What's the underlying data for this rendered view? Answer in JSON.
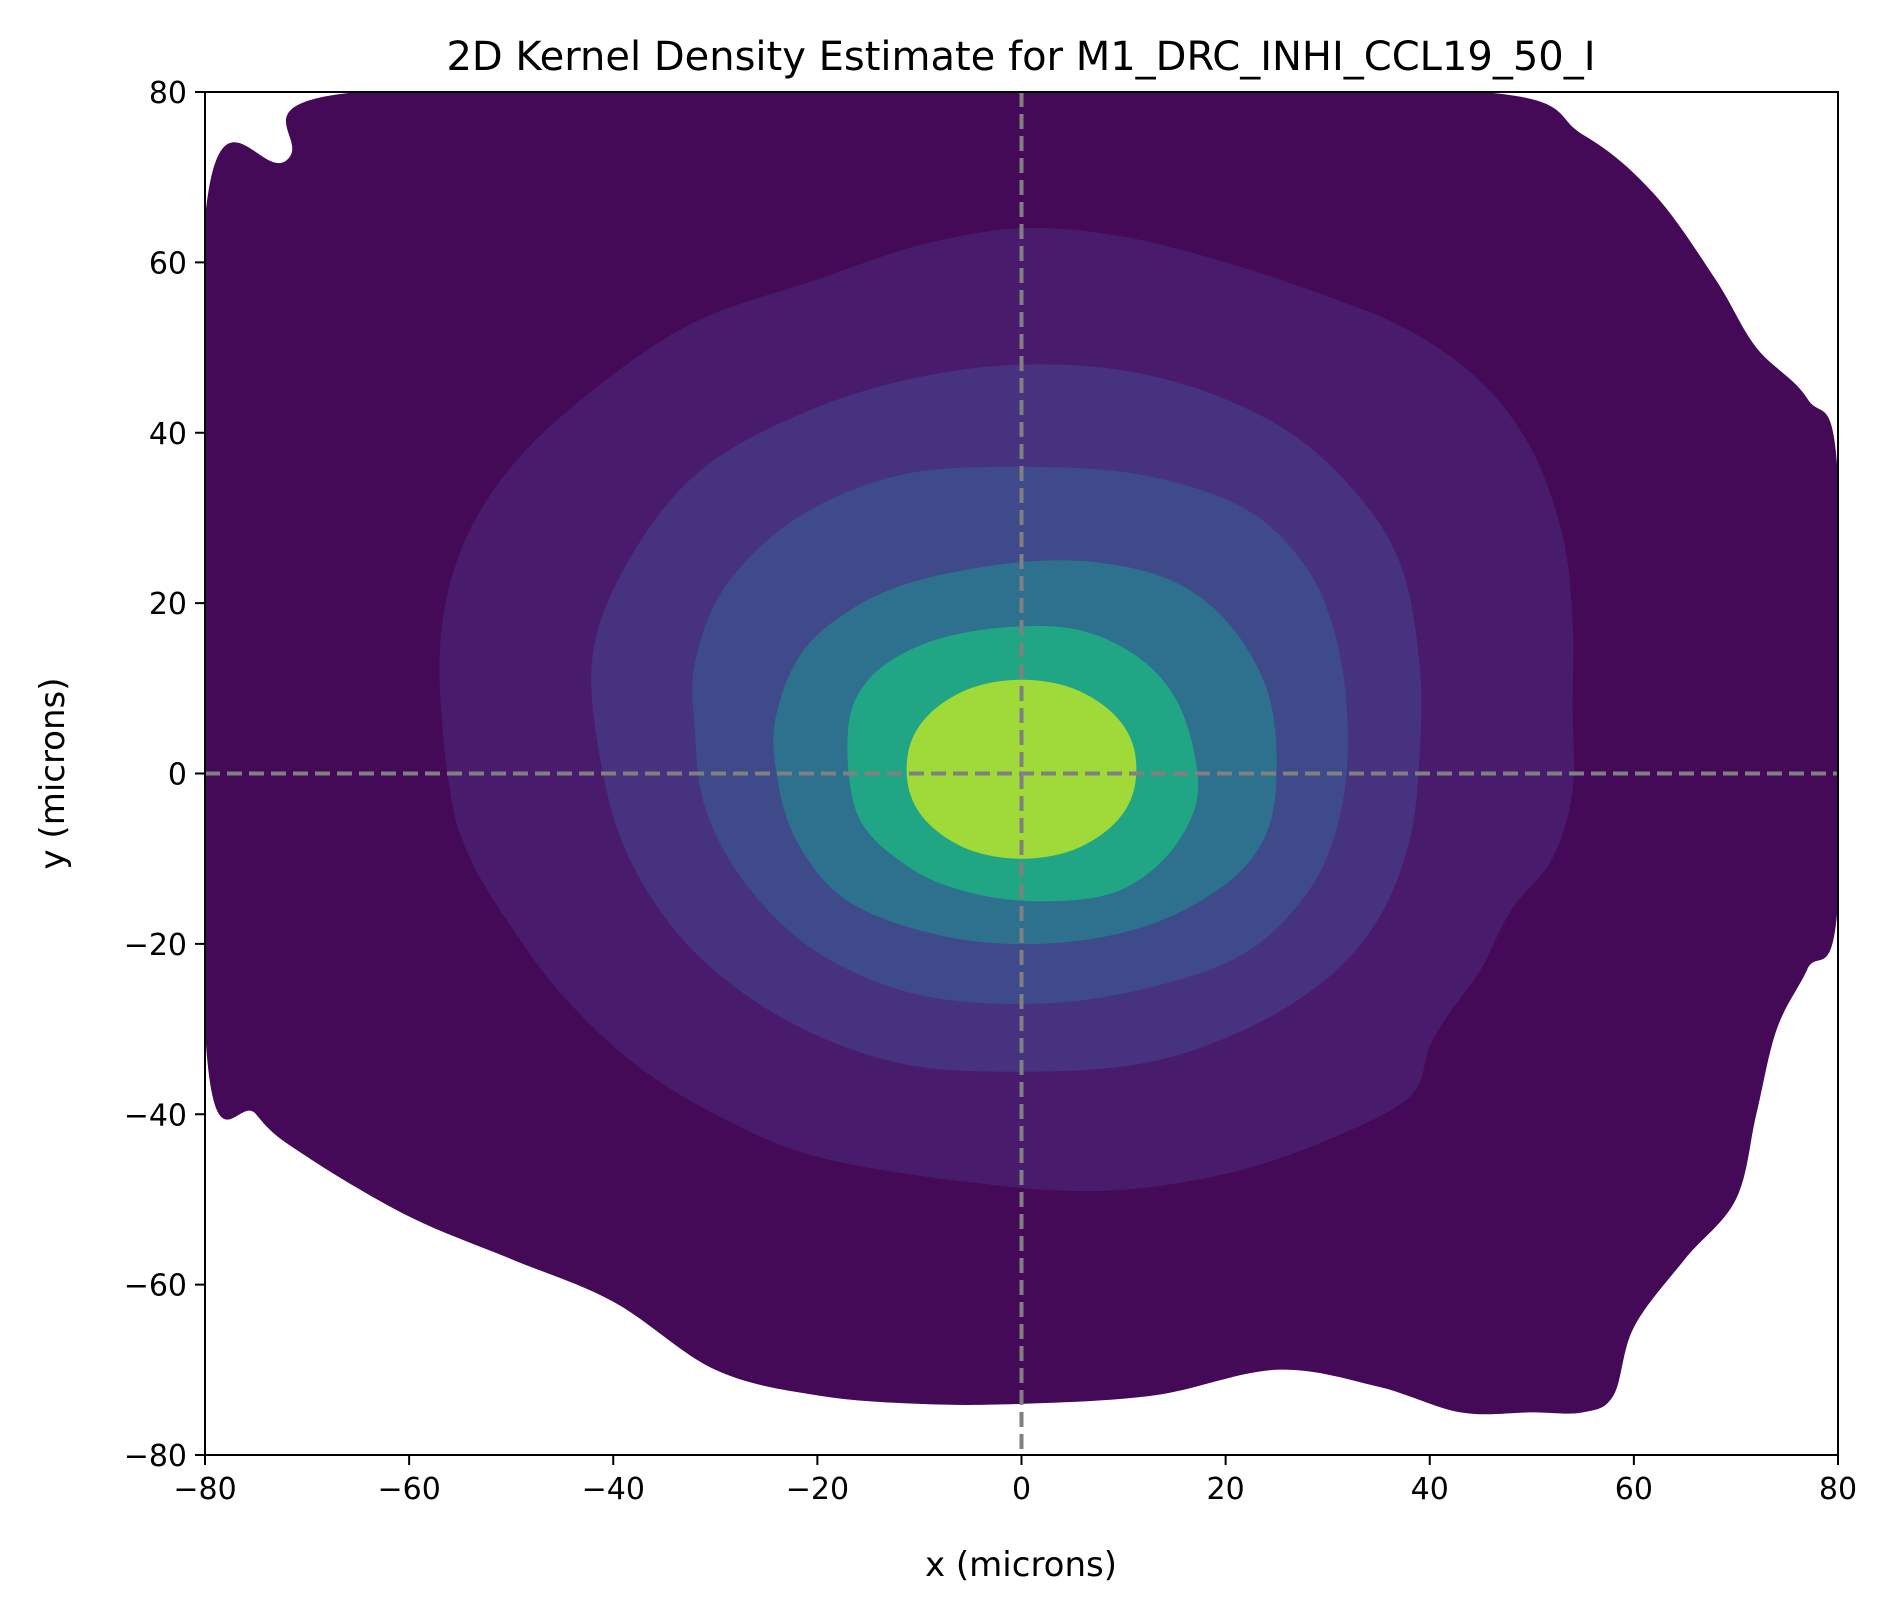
{
  "chart_data": {
    "type": "kde_contour",
    "title": "2D Kernel Density Estimate for M1_DRC_INHI_CCL19_50_I",
    "xlabel": "x (microns)",
    "ylabel": "y (microns)",
    "xlim": [
      -80,
      80
    ],
    "ylim": [
      -80,
      80
    ],
    "xticks": [
      -80,
      -60,
      -40,
      -20,
      0,
      20,
      40,
      60,
      80
    ],
    "yticks": [
      -80,
      -60,
      -40,
      -20,
      0,
      20,
      40,
      60,
      80
    ],
    "xtick_labels": [
      "−80",
      "−60",
      "−40",
      "−20",
      "0",
      "20",
      "40",
      "60",
      "80"
    ],
    "ytick_labels": [
      "−80",
      "−60",
      "−40",
      "−20",
      "0",
      "20",
      "40",
      "60",
      "80"
    ],
    "colormap": "viridis",
    "reference_lines": {
      "x": 0,
      "y": 0,
      "style": "dashed",
      "color": "#808080"
    },
    "grid": false,
    "levels": [
      {
        "level": 1,
        "color": "#440a57",
        "outline": [
          [
            -80,
            65
          ],
          [
            -72,
            72
          ],
          [
            -65,
            80
          ],
          [
            0,
            80
          ],
          [
            45,
            80
          ],
          [
            55,
            75
          ],
          [
            62,
            68
          ],
          [
            68,
            58
          ],
          [
            72,
            50
          ],
          [
            77,
            44
          ],
          [
            80,
            35
          ],
          [
            80,
            -15
          ],
          [
            77,
            -23
          ],
          [
            74,
            -30
          ],
          [
            72,
            -40
          ],
          [
            70,
            -50
          ],
          [
            65,
            -57
          ],
          [
            60,
            -65
          ],
          [
            58,
            -73
          ],
          [
            55,
            -75
          ],
          [
            50,
            -75
          ],
          [
            43,
            -75
          ],
          [
            35,
            -72
          ],
          [
            25,
            -70
          ],
          [
            13,
            -73
          ],
          [
            0,
            -74
          ],
          [
            -10,
            -74
          ],
          [
            -20,
            -73
          ],
          [
            -30,
            -70
          ],
          [
            -40,
            -62
          ],
          [
            -50,
            -57
          ],
          [
            -60,
            -52
          ],
          [
            -70,
            -45
          ],
          [
            -75,
            -40
          ],
          [
            -80,
            -30
          ]
        ]
      },
      {
        "level": 2,
        "color": "#481b6d",
        "outline": [
          [
            -57,
            14
          ],
          [
            -55,
            26
          ],
          [
            -50,
            36
          ],
          [
            -42,
            45
          ],
          [
            -32,
            53
          ],
          [
            -20,
            58
          ],
          [
            -10,
            62
          ],
          [
            0,
            64
          ],
          [
            10,
            63
          ],
          [
            20,
            60
          ],
          [
            30,
            56
          ],
          [
            38,
            52
          ],
          [
            45,
            46
          ],
          [
            50,
            38
          ],
          [
            53,
            28
          ],
          [
            54,
            18
          ],
          [
            54,
            8
          ],
          [
            54,
            -2
          ],
          [
            52,
            -10
          ],
          [
            48,
            -16
          ],
          [
            45,
            -23
          ],
          [
            42,
            -28
          ],
          [
            40,
            -32
          ],
          [
            38,
            -38
          ],
          [
            30,
            -43
          ],
          [
            20,
            -47
          ],
          [
            8,
            -49
          ],
          [
            -5,
            -48
          ],
          [
            -20,
            -45
          ],
          [
            -30,
            -40
          ],
          [
            -38,
            -34
          ],
          [
            -45,
            -26
          ],
          [
            -50,
            -18
          ],
          [
            -54,
            -10
          ],
          [
            -56,
            -2
          ]
        ]
      },
      {
        "level": 3,
        "color": "#46327e",
        "outline": [
          [
            -42,
            14
          ],
          [
            -38,
            26
          ],
          [
            -31,
            36
          ],
          [
            -20,
            43
          ],
          [
            -8,
            47
          ],
          [
            4,
            48
          ],
          [
            15,
            46
          ],
          [
            25,
            41
          ],
          [
            32,
            34
          ],
          [
            37,
            25
          ],
          [
            39,
            13
          ],
          [
            39,
            2
          ],
          [
            38,
            -8
          ],
          [
            35,
            -17
          ],
          [
            30,
            -24
          ],
          [
            22,
            -30
          ],
          [
            12,
            -34
          ],
          [
            0,
            -35
          ],
          [
            -12,
            -34
          ],
          [
            -23,
            -29
          ],
          [
            -32,
            -21
          ],
          [
            -38,
            -11
          ],
          [
            -41,
            0
          ]
        ]
      },
      {
        "level": 4,
        "color": "#3e4a89",
        "outline": [
          [
            -32,
            13
          ],
          [
            -29,
            22
          ],
          [
            -22,
            30
          ],
          [
            -12,
            35
          ],
          [
            0,
            36
          ],
          [
            12,
            35
          ],
          [
            22,
            31
          ],
          [
            28,
            24
          ],
          [
            31,
            15
          ],
          [
            32,
            4
          ],
          [
            31,
            -6
          ],
          [
            28,
            -14
          ],
          [
            22,
            -21
          ],
          [
            13,
            -25
          ],
          [
            2,
            -27
          ],
          [
            -10,
            -26
          ],
          [
            -20,
            -21
          ],
          [
            -27,
            -13
          ],
          [
            -31,
            -4
          ],
          [
            -32,
            5
          ]
        ]
      },
      {
        "level": 5,
        "color": "#2d718e",
        "outline": [
          [
            -24,
            7
          ],
          [
            -21,
            15
          ],
          [
            -14,
            21
          ],
          [
            -5,
            24
          ],
          [
            5,
            25
          ],
          [
            14,
            23
          ],
          [
            20,
            18
          ],
          [
            24,
            10
          ],
          [
            25,
            1
          ],
          [
            24,
            -7
          ],
          [
            20,
            -13
          ],
          [
            12,
            -18
          ],
          [
            2,
            -20
          ],
          [
            -8,
            -19
          ],
          [
            -17,
            -15
          ],
          [
            -22,
            -8
          ],
          [
            -24,
            0
          ]
        ]
      },
      {
        "level": 6,
        "color": "#21a685",
        "outline": [
          [
            -17,
            5
          ],
          [
            -15,
            11
          ],
          [
            -10,
            15
          ],
          [
            -3,
            17
          ],
          [
            5,
            17
          ],
          [
            11,
            14
          ],
          [
            15,
            9
          ],
          [
            17,
            2
          ],
          [
            17,
            -4
          ],
          [
            14,
            -10
          ],
          [
            9,
            -14
          ],
          [
            2,
            -15
          ],
          [
            -5,
            -14
          ],
          [
            -11,
            -11
          ],
          [
            -16,
            -5
          ]
        ]
      },
      {
        "level": 7,
        "color": "#a0da39",
        "outline": [
          [
            -11,
            3
          ],
          [
            -9,
            7
          ],
          [
            -5,
            10
          ],
          [
            0,
            11
          ],
          [
            5,
            10
          ],
          [
            9,
            7
          ],
          [
            11,
            3
          ],
          [
            11,
            -2
          ],
          [
            9,
            -6
          ],
          [
            5,
            -9
          ],
          [
            0,
            -10
          ],
          [
            -5,
            -9
          ],
          [
            -9,
            -6
          ],
          [
            -11,
            -2
          ]
        ]
      }
    ]
  }
}
